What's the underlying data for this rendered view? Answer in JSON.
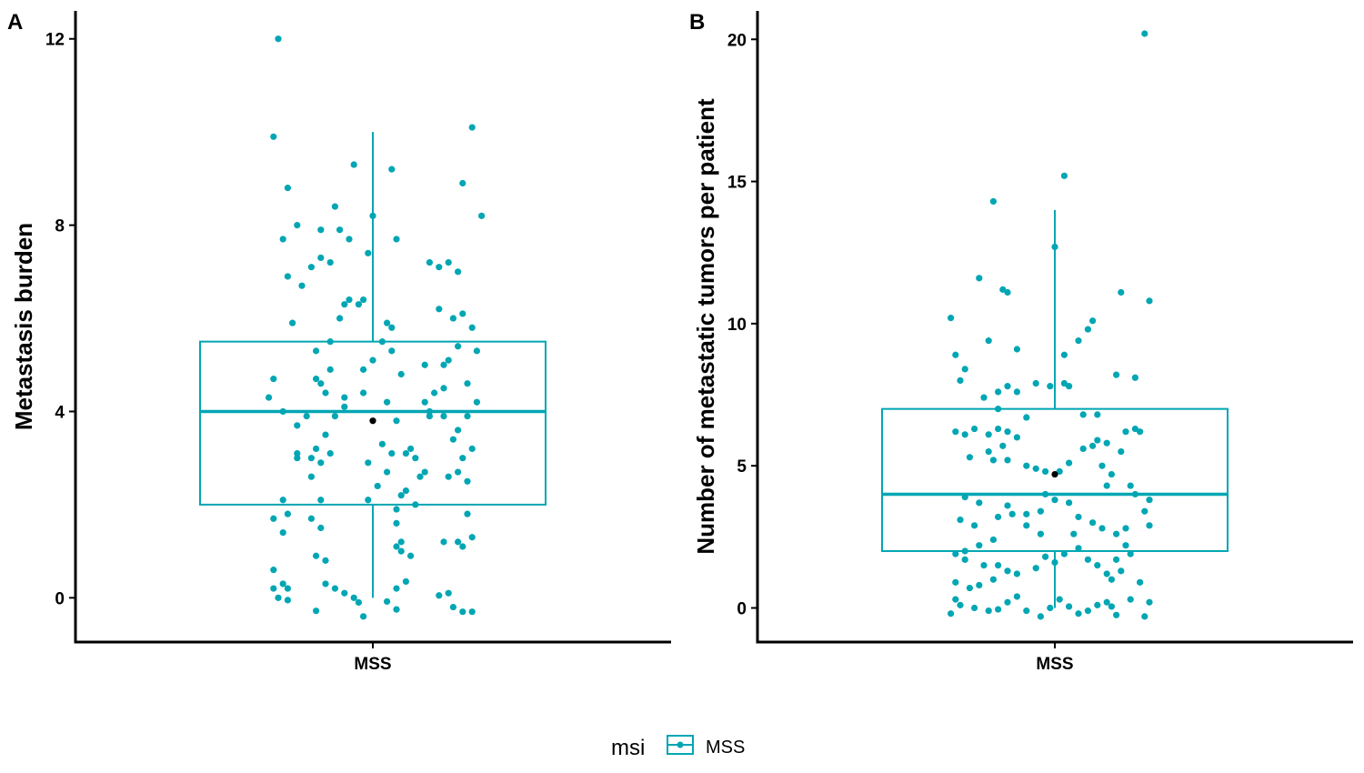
{
  "colors": {
    "series": "#00a6b3",
    "mean": "#000000",
    "axis": "#000000"
  },
  "legend": {
    "title": "msi",
    "label": "MSS"
  },
  "chart_data": [
    {
      "panel": "A",
      "type": "box",
      "categories": [
        "MSS"
      ],
      "ylabel": "Metastasis burden",
      "xlabel": "",
      "ylim": [
        -0.95,
        12.6
      ],
      "yticks": [
        0,
        4,
        8,
        12
      ],
      "box": {
        "min": 0,
        "q1": 2,
        "median": 4,
        "q3": 5.5,
        "max": 10,
        "mean": 3.8
      },
      "points": [
        [
          -0.2,
          12.0
        ],
        [
          -0.21,
          9.9
        ],
        [
          -0.18,
          8.8
        ],
        [
          -0.19,
          7.7
        ],
        [
          -0.16,
          8.0
        ],
        [
          -0.18,
          6.9
        ],
        [
          -0.15,
          6.7
        ],
        [
          -0.17,
          5.9
        ],
        [
          -0.21,
          4.7
        ],
        [
          -0.22,
          4.3
        ],
        [
          -0.19,
          4.0
        ],
        [
          -0.16,
          3.7
        ],
        [
          -0.14,
          3.9
        ],
        [
          -0.16,
          3.1
        ],
        [
          -0.13,
          3.0
        ],
        [
          -0.16,
          3.0
        ],
        [
          -0.19,
          2.1
        ],
        [
          -0.18,
          1.8
        ],
        [
          -0.19,
          1.4
        ],
        [
          -0.21,
          1.7
        ],
        [
          -0.21,
          0.6
        ],
        [
          -0.19,
          0.3
        ],
        [
          -0.18,
          0.2
        ],
        [
          -0.21,
          0.2
        ],
        [
          -0.2,
          0.0
        ],
        [
          -0.18,
          -0.05
        ],
        [
          -0.12,
          -0.28
        ],
        [
          -0.13,
          2.6
        ],
        [
          -0.11,
          2.1
        ],
        [
          -0.13,
          1.7
        ],
        [
          -0.11,
          1.5
        ],
        [
          -0.12,
          0.9
        ],
        [
          -0.1,
          0.8
        ],
        [
          -0.1,
          0.3
        ],
        [
          -0.08,
          0.2
        ],
        [
          -0.06,
          0.1
        ],
        [
          -0.04,
          0.0
        ],
        [
          -0.03,
          -0.1
        ],
        [
          -0.11,
          2.9
        ],
        [
          -0.09,
          3.1
        ],
        [
          -0.12,
          3.2
        ],
        [
          -0.1,
          3.5
        ],
        [
          -0.08,
          3.9
        ],
        [
          -0.06,
          4.1
        ],
        [
          -0.06,
          4.3
        ],
        [
          -0.1,
          4.4
        ],
        [
          -0.12,
          4.7
        ],
        [
          -0.11,
          4.6
        ],
        [
          -0.09,
          4.9
        ],
        [
          -0.12,
          5.3
        ],
        [
          -0.09,
          5.5
        ],
        [
          -0.07,
          6.0
        ],
        [
          -0.06,
          6.3
        ],
        [
          -0.05,
          6.4
        ],
        [
          -0.03,
          6.3
        ],
        [
          -0.02,
          6.4
        ],
        [
          -0.11,
          7.3
        ],
        [
          -0.13,
          7.1
        ],
        [
          -0.09,
          7.2
        ],
        [
          -0.07,
          7.9
        ],
        [
          -0.05,
          7.7
        ],
        [
          -0.11,
          7.9
        ],
        [
          -0.08,
          8.4
        ],
        [
          -0.04,
          9.3
        ],
        [
          0.0,
          8.2
        ],
        [
          0.04,
          9.2
        ],
        [
          0.05,
          7.7
        ],
        [
          -0.01,
          7.4
        ],
        [
          0.03,
          5.9
        ],
        [
          0.04,
          5.8
        ],
        [
          0.04,
          5.3
        ],
        [
          0.02,
          5.5
        ],
        [
          0.0,
          5.1
        ],
        [
          -0.02,
          4.9
        ],
        [
          -0.02,
          4.4
        ],
        [
          0.03,
          4.2
        ],
        [
          0.05,
          3.8
        ],
        [
          0.02,
          3.3
        ],
        [
          0.04,
          3.1
        ],
        [
          -0.01,
          2.9
        ],
        [
          0.03,
          2.7
        ],
        [
          0.01,
          2.4
        ],
        [
          0.06,
          2.2
        ],
        [
          0.07,
          2.3
        ],
        [
          -0.01,
          2.1
        ],
        [
          0.05,
          1.9
        ],
        [
          0.05,
          1.6
        ],
        [
          0.06,
          1.2
        ],
        [
          0.05,
          1.1
        ],
        [
          0.06,
          1.0
        ],
        [
          0.08,
          0.9
        ],
        [
          0.05,
          0.2
        ],
        [
          0.07,
          0.35
        ],
        [
          0.03,
          -0.08
        ],
        [
          0.05,
          -0.25
        ],
        [
          -0.02,
          -0.4
        ],
        [
          0.09,
          2.0
        ],
        [
          0.1,
          2.6
        ],
        [
          0.07,
          3.1
        ],
        [
          0.09,
          3.0
        ],
        [
          0.11,
          2.7
        ],
        [
          0.08,
          3.2
        ],
        [
          0.06,
          4.8
        ],
        [
          0.11,
          4.2
        ],
        [
          0.12,
          4.0
        ],
        [
          0.15,
          4.5
        ],
        [
          0.11,
          5.0
        ],
        [
          0.14,
          6.2
        ],
        [
          0.12,
          7.2
        ],
        [
          0.14,
          7.1
        ],
        [
          0.16,
          7.2
        ],
        [
          0.18,
          7.0
        ],
        [
          0.19,
          6.1
        ],
        [
          0.17,
          6.0
        ],
        [
          0.18,
          5.4
        ],
        [
          0.16,
          5.1
        ],
        [
          0.15,
          5.0
        ],
        [
          0.13,
          4.4
        ],
        [
          0.12,
          3.9
        ],
        [
          0.15,
          3.9
        ],
        [
          0.18,
          3.6
        ],
        [
          0.2,
          3.9
        ],
        [
          0.19,
          3.0
        ],
        [
          0.21,
          3.2
        ],
        [
          0.17,
          3.4
        ],
        [
          0.16,
          2.6
        ],
        [
          0.18,
          2.7
        ],
        [
          0.2,
          2.5
        ],
        [
          0.2,
          1.8
        ],
        [
          0.21,
          1.3
        ],
        [
          0.19,
          1.1
        ],
        [
          0.18,
          1.2
        ],
        [
          0.15,
          1.2
        ],
        [
          0.17,
          -0.2
        ],
        [
          0.19,
          -0.3
        ],
        [
          0.14,
          0.05
        ],
        [
          0.16,
          0.1
        ],
        [
          0.21,
          5.8
        ],
        [
          0.19,
          8.9
        ],
        [
          0.21,
          10.1
        ],
        [
          0.23,
          8.2
        ],
        [
          0.22,
          4.2
        ],
        [
          0.2,
          4.6
        ],
        [
          0.22,
          5.3
        ],
        [
          0.21,
          -0.3
        ]
      ]
    },
    {
      "panel": "B",
      "type": "box",
      "categories": [
        "MSS"
      ],
      "ylabel": "Number of metastatic tumors per patient",
      "xlabel": "",
      "ylim": [
        -1.2,
        21.0
      ],
      "yticks": [
        0,
        5,
        10,
        15,
        20
      ],
      "box": {
        "min": 0,
        "q1": 2,
        "median": 4,
        "q3": 7,
        "max": 14,
        "mean": 4.7
      },
      "points": [
        [
          0.19,
          20.2
        ],
        [
          0.02,
          15.2
        ],
        [
          -0.13,
          14.3
        ],
        [
          0.0,
          12.7
        ],
        [
          -0.16,
          11.6
        ],
        [
          -0.11,
          11.2
        ],
        [
          -0.1,
          11.1
        ],
        [
          0.14,
          11.1
        ],
        [
          0.2,
          10.8
        ],
        [
          -0.22,
          10.2
        ],
        [
          0.08,
          10.1
        ],
        [
          0.07,
          9.8
        ],
        [
          0.05,
          9.4
        ],
        [
          -0.14,
          9.4
        ],
        [
          -0.08,
          9.1
        ],
        [
          -0.21,
          8.9
        ],
        [
          0.02,
          8.9
        ],
        [
          -0.19,
          8.4
        ],
        [
          0.17,
          8.1
        ],
        [
          0.13,
          8.2
        ],
        [
          -0.2,
          8.0
        ],
        [
          -0.15,
          7.4
        ],
        [
          -0.12,
          7.6
        ],
        [
          -0.1,
          7.8
        ],
        [
          -0.08,
          7.6
        ],
        [
          -0.04,
          7.9
        ],
        [
          -0.01,
          7.8
        ],
        [
          0.03,
          7.8
        ],
        [
          0.02,
          7.9
        ],
        [
          0.09,
          6.8
        ],
        [
          0.06,
          6.8
        ],
        [
          -0.12,
          7.0
        ],
        [
          -0.06,
          6.7
        ],
        [
          -0.17,
          6.3
        ],
        [
          -0.21,
          6.2
        ],
        [
          -0.19,
          6.1
        ],
        [
          -0.14,
          6.1
        ],
        [
          -0.12,
          6.3
        ],
        [
          -0.1,
          6.2
        ],
        [
          -0.08,
          6.0
        ],
        [
          -0.11,
          5.7
        ],
        [
          -0.14,
          5.5
        ],
        [
          -0.18,
          5.3
        ],
        [
          -0.13,
          5.2
        ],
        [
          -0.1,
          5.2
        ],
        [
          -0.06,
          5.0
        ],
        [
          -0.04,
          4.9
        ],
        [
          -0.02,
          4.8
        ],
        [
          0.01,
          4.8
        ],
        [
          0.03,
          5.1
        ],
        [
          0.06,
          5.6
        ],
        [
          0.08,
          5.7
        ],
        [
          0.09,
          5.9
        ],
        [
          0.11,
          5.8
        ],
        [
          0.15,
          6.2
        ],
        [
          0.17,
          6.3
        ],
        [
          0.18,
          6.2
        ],
        [
          0.14,
          5.5
        ],
        [
          0.1,
          5.0
        ],
        [
          0.12,
          4.7
        ],
        [
          0.11,
          4.3
        ],
        [
          0.16,
          4.3
        ],
        [
          0.17,
          4.0
        ],
        [
          0.2,
          3.8
        ],
        [
          0.19,
          3.4
        ],
        [
          0.2,
          2.9
        ],
        [
          0.15,
          2.8
        ],
        [
          0.13,
          2.6
        ],
        [
          0.1,
          2.8
        ],
        [
          0.08,
          3.0
        ],
        [
          0.05,
          3.2
        ],
        [
          0.03,
          3.7
        ],
        [
          0.0,
          3.8
        ],
        [
          -0.02,
          4.0
        ],
        [
          -0.03,
          3.4
        ],
        [
          -0.06,
          3.3
        ],
        [
          -0.09,
          3.3
        ],
        [
          -0.12,
          3.2
        ],
        [
          -0.1,
          3.6
        ],
        [
          -0.16,
          3.7
        ],
        [
          -0.19,
          3.9
        ],
        [
          -0.2,
          3.1
        ],
        [
          -0.17,
          2.9
        ],
        [
          -0.13,
          2.4
        ],
        [
          -0.16,
          2.2
        ],
        [
          -0.19,
          2.0
        ],
        [
          -0.21,
          1.9
        ],
        [
          -0.19,
          1.7
        ],
        [
          -0.15,
          1.5
        ],
        [
          -0.12,
          1.5
        ],
        [
          -0.1,
          1.3
        ],
        [
          -0.08,
          1.2
        ],
        [
          -0.04,
          1.4
        ],
        [
          -0.02,
          1.8
        ],
        [
          0.0,
          1.6
        ],
        [
          0.02,
          1.9
        ],
        [
          0.05,
          2.1
        ],
        [
          0.07,
          1.7
        ],
        [
          0.09,
          1.5
        ],
        [
          0.11,
          1.2
        ],
        [
          0.12,
          1.0
        ],
        [
          0.13,
          1.7
        ],
        [
          0.15,
          2.2
        ],
        [
          0.16,
          1.9
        ],
        [
          0.14,
          1.3
        ],
        [
          0.18,
          0.9
        ],
        [
          0.2,
          0.2
        ],
        [
          0.16,
          0.3
        ],
        [
          0.11,
          0.2
        ],
        [
          0.09,
          0.1
        ],
        [
          0.07,
          -0.1
        ],
        [
          0.05,
          -0.2
        ],
        [
          0.03,
          0.05
        ],
        [
          0.01,
          0.3
        ],
        [
          -0.01,
          0.0
        ],
        [
          -0.03,
          -0.3
        ],
        [
          -0.06,
          -0.1
        ],
        [
          -0.08,
          0.4
        ],
        [
          -0.1,
          0.2
        ],
        [
          -0.12,
          -0.05
        ],
        [
          -0.14,
          -0.1
        ],
        [
          -0.17,
          0.0
        ],
        [
          -0.2,
          0.1
        ],
        [
          -0.21,
          0.3
        ],
        [
          -0.21,
          0.9
        ],
        [
          -0.18,
          0.7
        ],
        [
          -0.16,
          0.8
        ],
        [
          -0.13,
          1.0
        ],
        [
          -0.03,
          2.6
        ],
        [
          -0.06,
          2.9
        ],
        [
          0.04,
          2.6
        ],
        [
          0.12,
          0.05
        ],
        [
          0.13,
          -0.25
        ],
        [
          0.19,
          -0.3
        ],
        [
          -0.22,
          -0.2
        ]
      ]
    }
  ]
}
